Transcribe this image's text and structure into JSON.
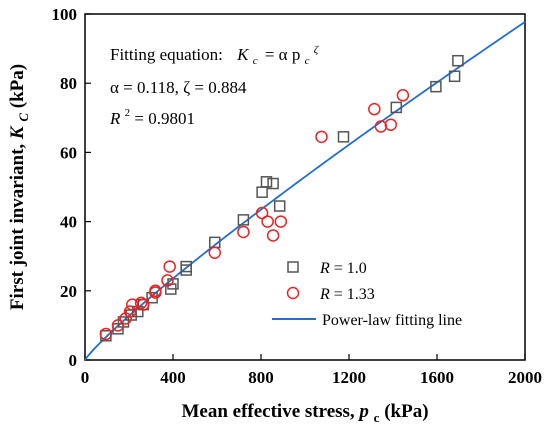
{
  "chart_data": {
    "type": "scatter",
    "xlabel_main": "Mean effective stress, ",
    "xlabel_var": "p",
    "xlabel_sub": "c",
    "xlabel_unit": " (kPa)",
    "ylabel_main": "First joint invariant, ",
    "ylabel_var": "K",
    "ylabel_sub": "C",
    "ylabel_unit": " (kPa)",
    "xlim": [
      0,
      2000
    ],
    "ylim": [
      0,
      100
    ],
    "xticks": [
      0,
      400,
      800,
      1200,
      1600,
      2000
    ],
    "yticks": [
      0,
      20,
      40,
      60,
      80,
      100
    ],
    "grid": false,
    "legend_position": "bottom-right",
    "annotation": {
      "fit_label": "Fitting equation:",
      "equation_lhs": "K",
      "equation_lhs_sub": "c",
      "equation_rhs": "= α p",
      "equation_rhs_sub": "c",
      "equation_rhs_sup": "ζ",
      "params": "α = 0.118, ζ = 0.884",
      "r2_lhs": "R",
      "r2_sup": "2",
      "r2_rhs": " = 0.9801"
    },
    "series": [
      {
        "name": "R = 1.0",
        "name_var": "R",
        "name_val": " = 1.0",
        "marker": "square",
        "color": "#555555",
        "points": [
          [
            95,
            7
          ],
          [
            150,
            9
          ],
          [
            175,
            11
          ],
          [
            210,
            13
          ],
          [
            240,
            14
          ],
          [
            265,
            16
          ],
          [
            305,
            18
          ],
          [
            390,
            20.5
          ],
          [
            400,
            22
          ],
          [
            460,
            26
          ],
          [
            460,
            27
          ],
          [
            590,
            34
          ],
          [
            720,
            40.5
          ],
          [
            805,
            48.5
          ],
          [
            825,
            51.5
          ],
          [
            855,
            51
          ],
          [
            885,
            44.5
          ],
          [
            1175,
            64.5
          ],
          [
            1415,
            73
          ],
          [
            1595,
            79
          ],
          [
            1680,
            82
          ],
          [
            1695,
            86.5
          ]
        ]
      },
      {
        "name": "R = 1.33",
        "name_var": "R",
        "name_val": " = 1.33",
        "marker": "circle",
        "color": "#ee2222",
        "points": [
          [
            95,
            7.5
          ],
          [
            150,
            10
          ],
          [
            185,
            12
          ],
          [
            205,
            14
          ],
          [
            215,
            16
          ],
          [
            255,
            16.5
          ],
          [
            265,
            16
          ],
          [
            320,
            19.5
          ],
          [
            320,
            20
          ],
          [
            375,
            23
          ],
          [
            385,
            27
          ],
          [
            590,
            31
          ],
          [
            720,
            37
          ],
          [
            805,
            42.5
          ],
          [
            830,
            40
          ],
          [
            855,
            36
          ],
          [
            890,
            40
          ],
          [
            1075,
            64.5
          ],
          [
            1315,
            72.5
          ],
          [
            1345,
            67.5
          ],
          [
            1390,
            68
          ],
          [
            1445,
            76.5
          ]
        ]
      },
      {
        "name": "Power-law fitting line",
        "marker": "line",
        "color": "#1f6fd1",
        "alpha": 0.118,
        "zeta": 0.884
      }
    ]
  }
}
